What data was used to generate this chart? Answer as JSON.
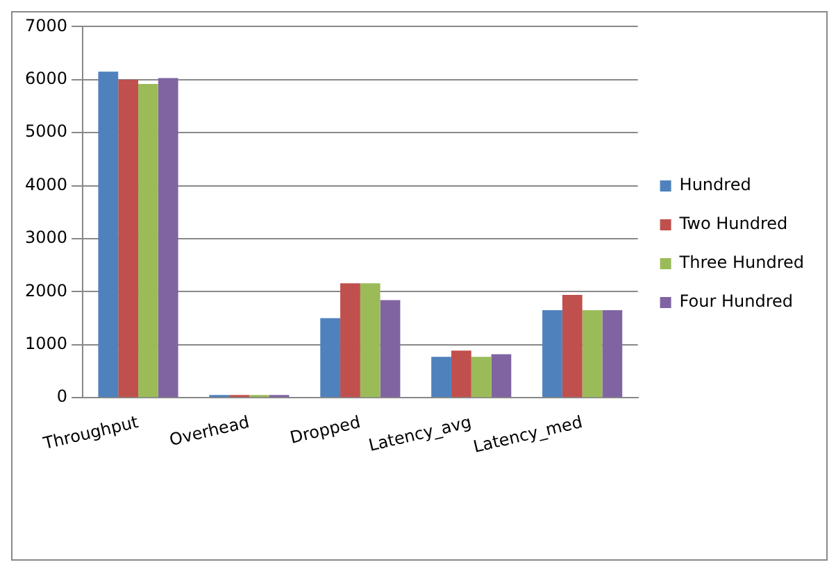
{
  "chart_data": {
    "type": "bar",
    "categories": [
      "Throughput",
      "Overhead",
      "Dropped",
      "Latency_avg",
      "Latency_med"
    ],
    "series": [
      {
        "name": "Hundred",
        "color": "#4f81bd",
        "values": [
          6150,
          50,
          1500,
          770,
          1650
        ]
      },
      {
        "name": "Two Hundred",
        "color": "#c0504d",
        "values": [
          6000,
          50,
          2160,
          890,
          1940
        ]
      },
      {
        "name": "Three Hundred",
        "color": "#9bbb59",
        "values": [
          5920,
          50,
          2160,
          770,
          1650
        ]
      },
      {
        "name": "Four Hundred",
        "color": "#8064a2",
        "values": [
          6030,
          50,
          1840,
          820,
          1650
        ]
      }
    ],
    "ylim": [
      0,
      7000
    ],
    "yticks": [
      0,
      1000,
      2000,
      3000,
      4000,
      5000,
      6000,
      7000
    ],
    "grid": "y",
    "legend": "right"
  }
}
